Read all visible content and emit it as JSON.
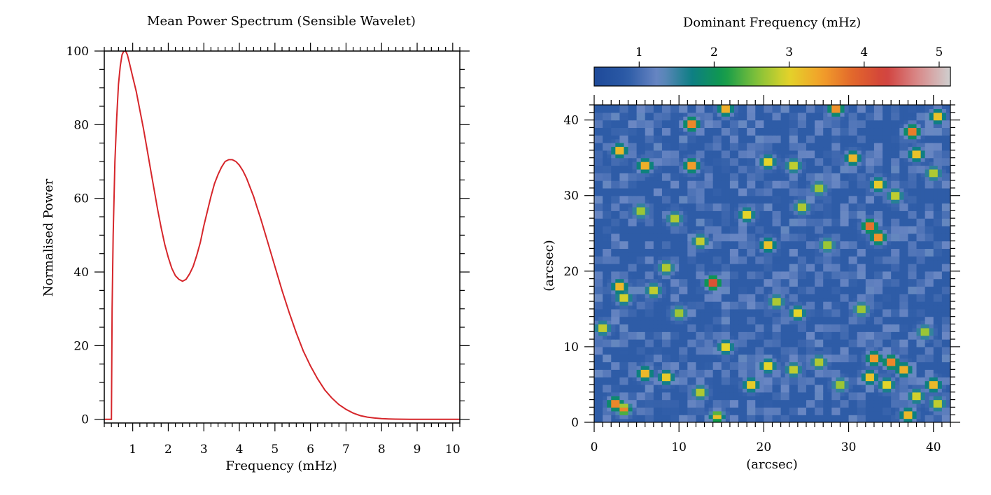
{
  "chart_data": [
    {
      "type": "line",
      "title": "Mean Power Spectrum (Sensible Wavelet)",
      "xlabel": "Frequency (mHz)",
      "ylabel": "Normalised Power",
      "xlim": [
        0.2,
        10.2
      ],
      "ylim": [
        -1,
        100
      ],
      "xticks": [
        1,
        2,
        3,
        4,
        5,
        6,
        7,
        8,
        9,
        10
      ],
      "yticks": [
        0,
        20,
        40,
        60,
        80,
        100
      ],
      "grid": false,
      "line_color": "#d6262b",
      "x": [
        0.2,
        0.4,
        0.42,
        0.45,
        0.5,
        0.55,
        0.6,
        0.65,
        0.7,
        0.75,
        0.8,
        0.85,
        0.9,
        1.0,
        1.1,
        1.2,
        1.3,
        1.4,
        1.5,
        1.6,
        1.7,
        1.8,
        1.9,
        2.0,
        2.1,
        2.2,
        2.3,
        2.4,
        2.5,
        2.6,
        2.7,
        2.8,
        2.9,
        3.0,
        3.1,
        3.2,
        3.3,
        3.4,
        3.5,
        3.6,
        3.7,
        3.8,
        3.9,
        4.0,
        4.1,
        4.2,
        4.3,
        4.4,
        4.5,
        4.6,
        4.8,
        5.0,
        5.2,
        5.4,
        5.6,
        5.8,
        6.0,
        6.2,
        6.4,
        6.6,
        6.8,
        7.0,
        7.2,
        7.4,
        7.6,
        7.8,
        8.0,
        8.2,
        8.4,
        8.6,
        8.8,
        9.0,
        9.5,
        10.0,
        10.2
      ],
      "y": [
        0,
        0,
        30,
        50,
        70,
        82,
        91,
        96,
        99,
        100,
        100,
        99,
        97,
        93,
        89,
        84,
        79,
        73.5,
        68,
        62.5,
        57,
        52,
        47.5,
        44,
        41,
        39,
        38,
        37.5,
        38,
        39.5,
        41.5,
        44.5,
        48,
        52.5,
        56.5,
        60.5,
        64,
        66.5,
        68.5,
        70,
        70.5,
        70.5,
        70,
        69,
        67.5,
        65.5,
        63,
        60.5,
        57.5,
        54.5,
        48,
        41.5,
        35,
        29,
        23.5,
        18.5,
        14.5,
        11,
        8,
        5.8,
        4,
        2.7,
        1.7,
        1.0,
        0.6,
        0.35,
        0.2,
        0.1,
        0.05,
        0.02,
        0.01,
        0,
        0,
        0,
        0
      ]
    },
    {
      "type": "heatmap",
      "title": "Dominant Frequency (mHz)",
      "xlabel": "(arcsec)",
      "ylabel": "(arcsec)",
      "xlim": [
        0,
        42
      ],
      "ylim": [
        0,
        42
      ],
      "xticks": [
        0,
        10,
        20,
        30,
        40
      ],
      "yticks": [
        0,
        10,
        20,
        30,
        40
      ],
      "colorbar_range": [
        0.4,
        5.15
      ],
      "colorbar_ticks": [
        1,
        2,
        3,
        4,
        5
      ],
      "colormap": [
        "#1e4a99",
        "#2b5aa6",
        "#6b88c4",
        "#0e7e84",
        "#0f9a4a",
        "#7fc03a",
        "#e3d42a",
        "#f2a12a",
        "#e2672c",
        "#d1403c",
        "#d98a8a",
        "#cfcfcf"
      ],
      "background_value": 0.85,
      "hotspots": [
        {
          "x": 11.5,
          "y": 39.5,
          "f": 4.4
        },
        {
          "x": 15.5,
          "y": 41.5,
          "f": 4.0
        },
        {
          "x": 28.5,
          "y": 41.5,
          "f": 4.3
        },
        {
          "x": 37.5,
          "y": 38.5,
          "f": 4.5
        },
        {
          "x": 40.5,
          "y": 40.5,
          "f": 3.8
        },
        {
          "x": 3.0,
          "y": 36.0,
          "f": 3.9
        },
        {
          "x": 6.0,
          "y": 34.0,
          "f": 4.0
        },
        {
          "x": 11.5,
          "y": 34.0,
          "f": 4.2
        },
        {
          "x": 20.5,
          "y": 34.5,
          "f": 3.6
        },
        {
          "x": 23.5,
          "y": 34.0,
          "f": 3.4
        },
        {
          "x": 30.5,
          "y": 35.0,
          "f": 3.9
        },
        {
          "x": 33.5,
          "y": 31.5,
          "f": 3.7
        },
        {
          "x": 38.0,
          "y": 35.5,
          "f": 3.8
        },
        {
          "x": 24.5,
          "y": 28.5,
          "f": 3.3
        },
        {
          "x": 26.5,
          "y": 31.0,
          "f": 3.2
        },
        {
          "x": 32.5,
          "y": 26.0,
          "f": 4.6
        },
        {
          "x": 33.5,
          "y": 24.5,
          "f": 4.3
        },
        {
          "x": 18.0,
          "y": 27.5,
          "f": 3.6
        },
        {
          "x": 12.5,
          "y": 24.0,
          "f": 3.4
        },
        {
          "x": 20.5,
          "y": 23.5,
          "f": 3.8
        },
        {
          "x": 14.0,
          "y": 18.5,
          "f": 5.0
        },
        {
          "x": 3.0,
          "y": 18.0,
          "f": 3.9
        },
        {
          "x": 3.5,
          "y": 16.5,
          "f": 3.5
        },
        {
          "x": 7.0,
          "y": 17.5,
          "f": 3.4
        },
        {
          "x": 24.0,
          "y": 14.5,
          "f": 3.6
        },
        {
          "x": 31.5,
          "y": 15.0,
          "f": 3.2
        },
        {
          "x": 15.5,
          "y": 10.0,
          "f": 3.6
        },
        {
          "x": 6.0,
          "y": 6.5,
          "f": 3.9
        },
        {
          "x": 8.5,
          "y": 6.0,
          "f": 3.7
        },
        {
          "x": 2.5,
          "y": 2.5,
          "f": 4.4
        },
        {
          "x": 3.5,
          "y": 1.8,
          "f": 4.0
        },
        {
          "x": 12.5,
          "y": 4.0,
          "f": 3.3
        },
        {
          "x": 18.5,
          "y": 5.0,
          "f": 3.7
        },
        {
          "x": 20.5,
          "y": 7.5,
          "f": 3.6
        },
        {
          "x": 23.5,
          "y": 7.0,
          "f": 3.4
        },
        {
          "x": 26.5,
          "y": 8.0,
          "f": 3.3
        },
        {
          "x": 33.0,
          "y": 8.5,
          "f": 4.2
        },
        {
          "x": 35.0,
          "y": 8.0,
          "f": 4.4
        },
        {
          "x": 36.5,
          "y": 7.0,
          "f": 4.0
        },
        {
          "x": 32.5,
          "y": 6.0,
          "f": 3.8
        },
        {
          "x": 34.5,
          "y": 5.0,
          "f": 3.6
        },
        {
          "x": 40.0,
          "y": 5.0,
          "f": 3.9
        },
        {
          "x": 38.0,
          "y": 3.5,
          "f": 3.5
        },
        {
          "x": 37.0,
          "y": 1.0,
          "f": 3.9
        },
        {
          "x": 14.5,
          "y": 0.8,
          "f": 3.5
        },
        {
          "x": 40.5,
          "y": 2.5,
          "f": 3.4
        },
        {
          "x": 29.0,
          "y": 5.0,
          "f": 3.2
        },
        {
          "x": 8.5,
          "y": 20.5,
          "f": 3.3
        },
        {
          "x": 35.5,
          "y": 30.0,
          "f": 3.4
        },
        {
          "x": 40.0,
          "y": 33.0,
          "f": 3.3
        },
        {
          "x": 5.5,
          "y": 28.0,
          "f": 3.2
        },
        {
          "x": 9.5,
          "y": 27.0,
          "f": 3.3
        },
        {
          "x": 27.5,
          "y": 23.5,
          "f": 3.2
        },
        {
          "x": 21.5,
          "y": 16.0,
          "f": 3.3
        },
        {
          "x": 10.0,
          "y": 14.5,
          "f": 3.2
        },
        {
          "x": 1.0,
          "y": 12.5,
          "f": 3.4
        },
        {
          "x": 39.0,
          "y": 12.0,
          "f": 3.2
        }
      ]
    }
  ]
}
